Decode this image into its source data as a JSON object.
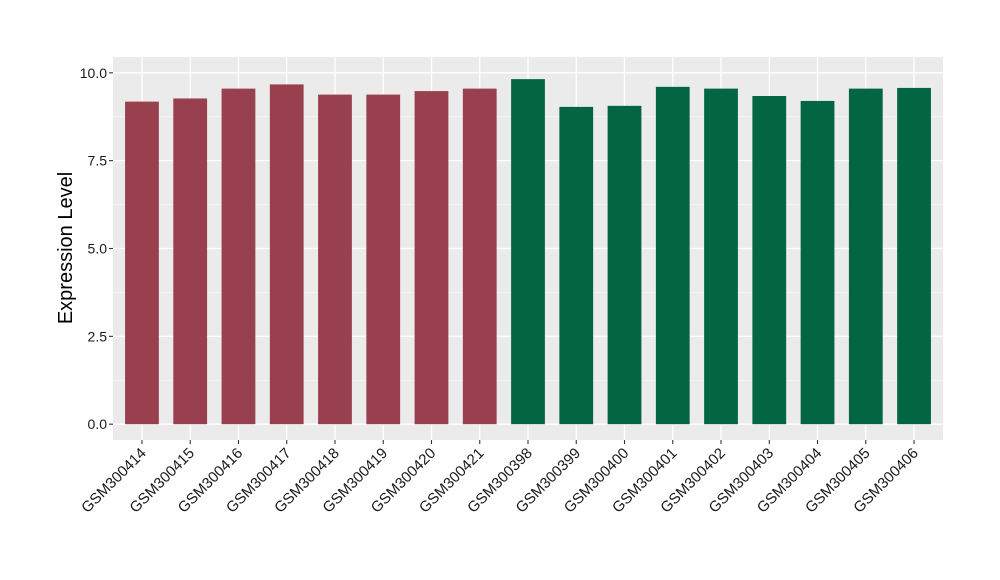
{
  "chart_data": {
    "type": "bar",
    "title": "",
    "xlabel": "",
    "ylabel": "Expression Level",
    "ylim": [
      -0.45,
      10.45
    ],
    "yticks": [
      0.0,
      2.5,
      5.0,
      7.5,
      10.0
    ],
    "ytick_labels": [
      "0.0",
      "2.5",
      "5.0",
      "7.5",
      "10.0"
    ],
    "grid": true,
    "legend": "none",
    "categories": [
      "GSM300414",
      "GSM300415",
      "GSM300416",
      "GSM300417",
      "GSM300418",
      "GSM300419",
      "GSM300420",
      "GSM300421",
      "GSM300398",
      "GSM300399",
      "GSM300400",
      "GSM300401",
      "GSM300402",
      "GSM300403",
      "GSM300404",
      "GSM300405",
      "GSM300406"
    ],
    "values": [
      9.18,
      9.27,
      9.55,
      9.67,
      9.38,
      9.38,
      9.48,
      9.55,
      9.82,
      9.03,
      9.06,
      9.6,
      9.55,
      9.34,
      9.2,
      9.55,
      9.57
    ],
    "bar_colors": [
      "#99404f",
      "#99404f",
      "#99404f",
      "#99404f",
      "#99404f",
      "#99404f",
      "#99404f",
      "#99404f",
      "#036642",
      "#036642",
      "#036642",
      "#036642",
      "#036642",
      "#036642",
      "#036642",
      "#036642",
      "#036642"
    ],
    "colors": {
      "panel_background": "#ebebeb",
      "grid_major": "#ffffff",
      "grid_minor": "#f5f5f5",
      "axis_tick": "#333333"
    }
  }
}
